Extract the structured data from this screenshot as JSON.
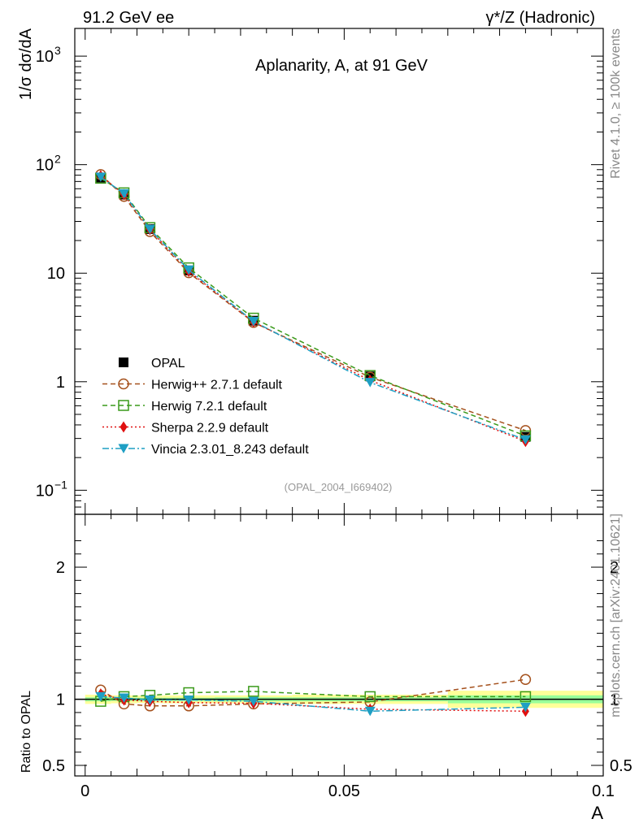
{
  "header": {
    "left": "91.2 GeV ee",
    "right": "γ*/Z (Hadronic)"
  },
  "side_text": {
    "top": "Rivet 4.1.0, ≥ 100k events",
    "bottom": "mcplots.cern.ch [arXiv:2401.10621]"
  },
  "chart_data": [
    {
      "type": "line",
      "title": "Aplanarity, A, at 91 GeV",
      "subtitle": "(OPAL_2004_I669402)",
      "ylabel": "1/σ  dσ/dA",
      "xlabel": "A",
      "yscale": "log",
      "ylim": [
        0.06,
        1800
      ],
      "xlim": [
        -0.002,
        0.1
      ],
      "yticks": [
        {
          "v": 0.1,
          "base": "10",
          "exp": "−1"
        },
        {
          "v": 1,
          "base": "1",
          "exp": ""
        },
        {
          "v": 10,
          "base": "10",
          "exp": ""
        },
        {
          "v": 100,
          "base": "10",
          "exp": "2"
        },
        {
          "v": 1000,
          "base": "10",
          "exp": "3"
        }
      ],
      "legend_position": "middle-left",
      "x": [
        0.003,
        0.0075,
        0.0125,
        0.02,
        0.0325,
        0.055,
        0.085
      ],
      "series": [
        {
          "name": "OPAL",
          "color": "#000000",
          "marker": "square-filled",
          "dash": "",
          "values": [
            76,
            53,
            25.5,
            10.6,
            3.65,
            1.12,
            0.31
          ]
        },
        {
          "name": "Herwig++ 2.7.1 default",
          "color": "#a5511d",
          "marker": "circle-open",
          "dash": "6,4",
          "values": [
            81,
            51,
            24.2,
            10.1,
            3.52,
            1.1,
            0.355
          ]
        },
        {
          "name": "Herwig 7.2.1 default",
          "color": "#3a9a1a",
          "marker": "square-open",
          "dash": "6,4",
          "values": [
            75,
            55,
            26.3,
            11.2,
            3.85,
            1.14,
            0.317
          ]
        },
        {
          "name": "Sherpa 2.2.9 default",
          "color": "#e01010",
          "marker": "diamond-filled",
          "dash": "2,3",
          "values": [
            79,
            53,
            25.2,
            10.4,
            3.55,
            1.03,
            0.282
          ]
        },
        {
          "name": "Vincia 2.3.01_8.243 default",
          "color": "#1e9fc4",
          "marker": "triangle-down-filled",
          "dash": "8,3,2,3",
          "values": [
            77,
            54,
            25.4,
            10.7,
            3.6,
            0.985,
            0.292
          ]
        }
      ]
    },
    {
      "type": "line",
      "title": "",
      "ylabel": "Ratio to OPAL",
      "xlabel": "A",
      "ylim": [
        0.42,
        2.4
      ],
      "yticks": [
        {
          "v": 0.5,
          "label": "0.5"
        },
        {
          "v": 1,
          "label": "1"
        },
        {
          "v": 2,
          "label": "2"
        }
      ],
      "xticks": [
        {
          "v": 0,
          "label": "0"
        },
        {
          "v": 0.05,
          "label": "0.05"
        },
        {
          "v": 0.1,
          "label": "0.1"
        }
      ],
      "x": [
        0.003,
        0.0075,
        0.0125,
        0.02,
        0.0325,
        0.055,
        0.085
      ],
      "uncertainty_bands": {
        "edges": [
          0,
          0.005,
          0.01,
          0.015,
          0.025,
          0.04,
          0.07,
          0.1
        ],
        "outer": [
          0.035,
          0.03,
          0.028,
          0.03,
          0.03,
          0.035,
          0.065
        ],
        "inner": [
          0.015,
          0.012,
          0.012,
          0.012,
          0.015,
          0.015,
          0.03
        ],
        "outer_color": "#ffff99",
        "inner_color": "#99ff99"
      },
      "series": [
        {
          "name": "Herwig++ 2.7.1 default",
          "color": "#a5511d",
          "marker": "circle-open",
          "dash": "6,4",
          "values": [
            1.07,
            0.965,
            0.95,
            0.95,
            0.965,
            0.98,
            1.15
          ]
        },
        {
          "name": "Herwig 7.2.1 default",
          "color": "#3a9a1a",
          "marker": "square-open",
          "dash": "6,4",
          "values": [
            0.985,
            1.02,
            1.03,
            1.05,
            1.06,
            1.02,
            1.02
          ]
        },
        {
          "name": "Sherpa 2.2.9 default",
          "color": "#e01010",
          "marker": "diamond-filled",
          "dash": "2,3",
          "values": [
            1.04,
            0.995,
            0.985,
            0.975,
            0.97,
            0.925,
            0.91
          ]
        },
        {
          "name": "Vincia 2.3.01_8.243 default",
          "color": "#1e9fc4",
          "marker": "triangle-down-filled",
          "dash": "8,3,2,3",
          "values": [
            1.02,
            1.01,
            0.995,
            0.995,
            0.985,
            0.91,
            0.94
          ]
        }
      ]
    }
  ]
}
